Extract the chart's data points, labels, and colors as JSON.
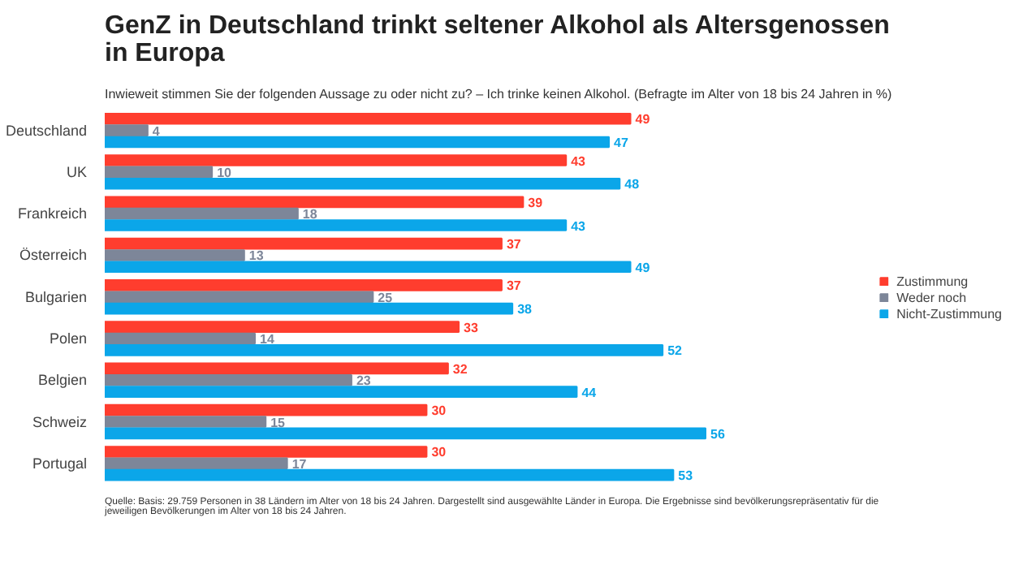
{
  "chart_data": {
    "type": "bar",
    "orientation": "horizontal",
    "title": "GenZ in Deutschland trinkt seltener Alkohol als Altersgenossen in Europa",
    "subtitle": "Inwieweit stimmen Sie der folgenden Aussage zu oder nicht zu? – Ich trinke keinen Alkohol. (Befragte im Alter von 18 bis 24 Jahren in %)",
    "categories": [
      "Deutschland",
      "UK",
      "Frankreich",
      "Österreich",
      "Bulgarien",
      "Polen",
      "Belgien",
      "Schweiz",
      "Portugal"
    ],
    "series": [
      {
        "name": "Zustimmung",
        "color": "#ff3d2e",
        "values": [
          49,
          43,
          39,
          37,
          37,
          33,
          32,
          30,
          30
        ]
      },
      {
        "name": "Weder noch",
        "color": "#7d8699",
        "values": [
          4,
          10,
          18,
          13,
          25,
          14,
          23,
          15,
          17
        ]
      },
      {
        "name": "Nicht-Zustimmung",
        "color": "#0ba6e9",
        "values": [
          47,
          48,
          43,
          49,
          38,
          52,
          44,
          56,
          53
        ]
      }
    ],
    "data_labels": true,
    "legend": "right",
    "grid": false,
    "annotations": [
      "Quelle: Basis: 29.759 Personen in 38 Ländern im Alter von 18 bis 24 Jahren. Dargestellt sind ausgewählte Länder in Europa. Die Ergebnisse sind bevölkerungsrepräsentativ für die jeweiligen Bevölkerungen im Alter von 18 bis 24 Jahren."
    ]
  }
}
